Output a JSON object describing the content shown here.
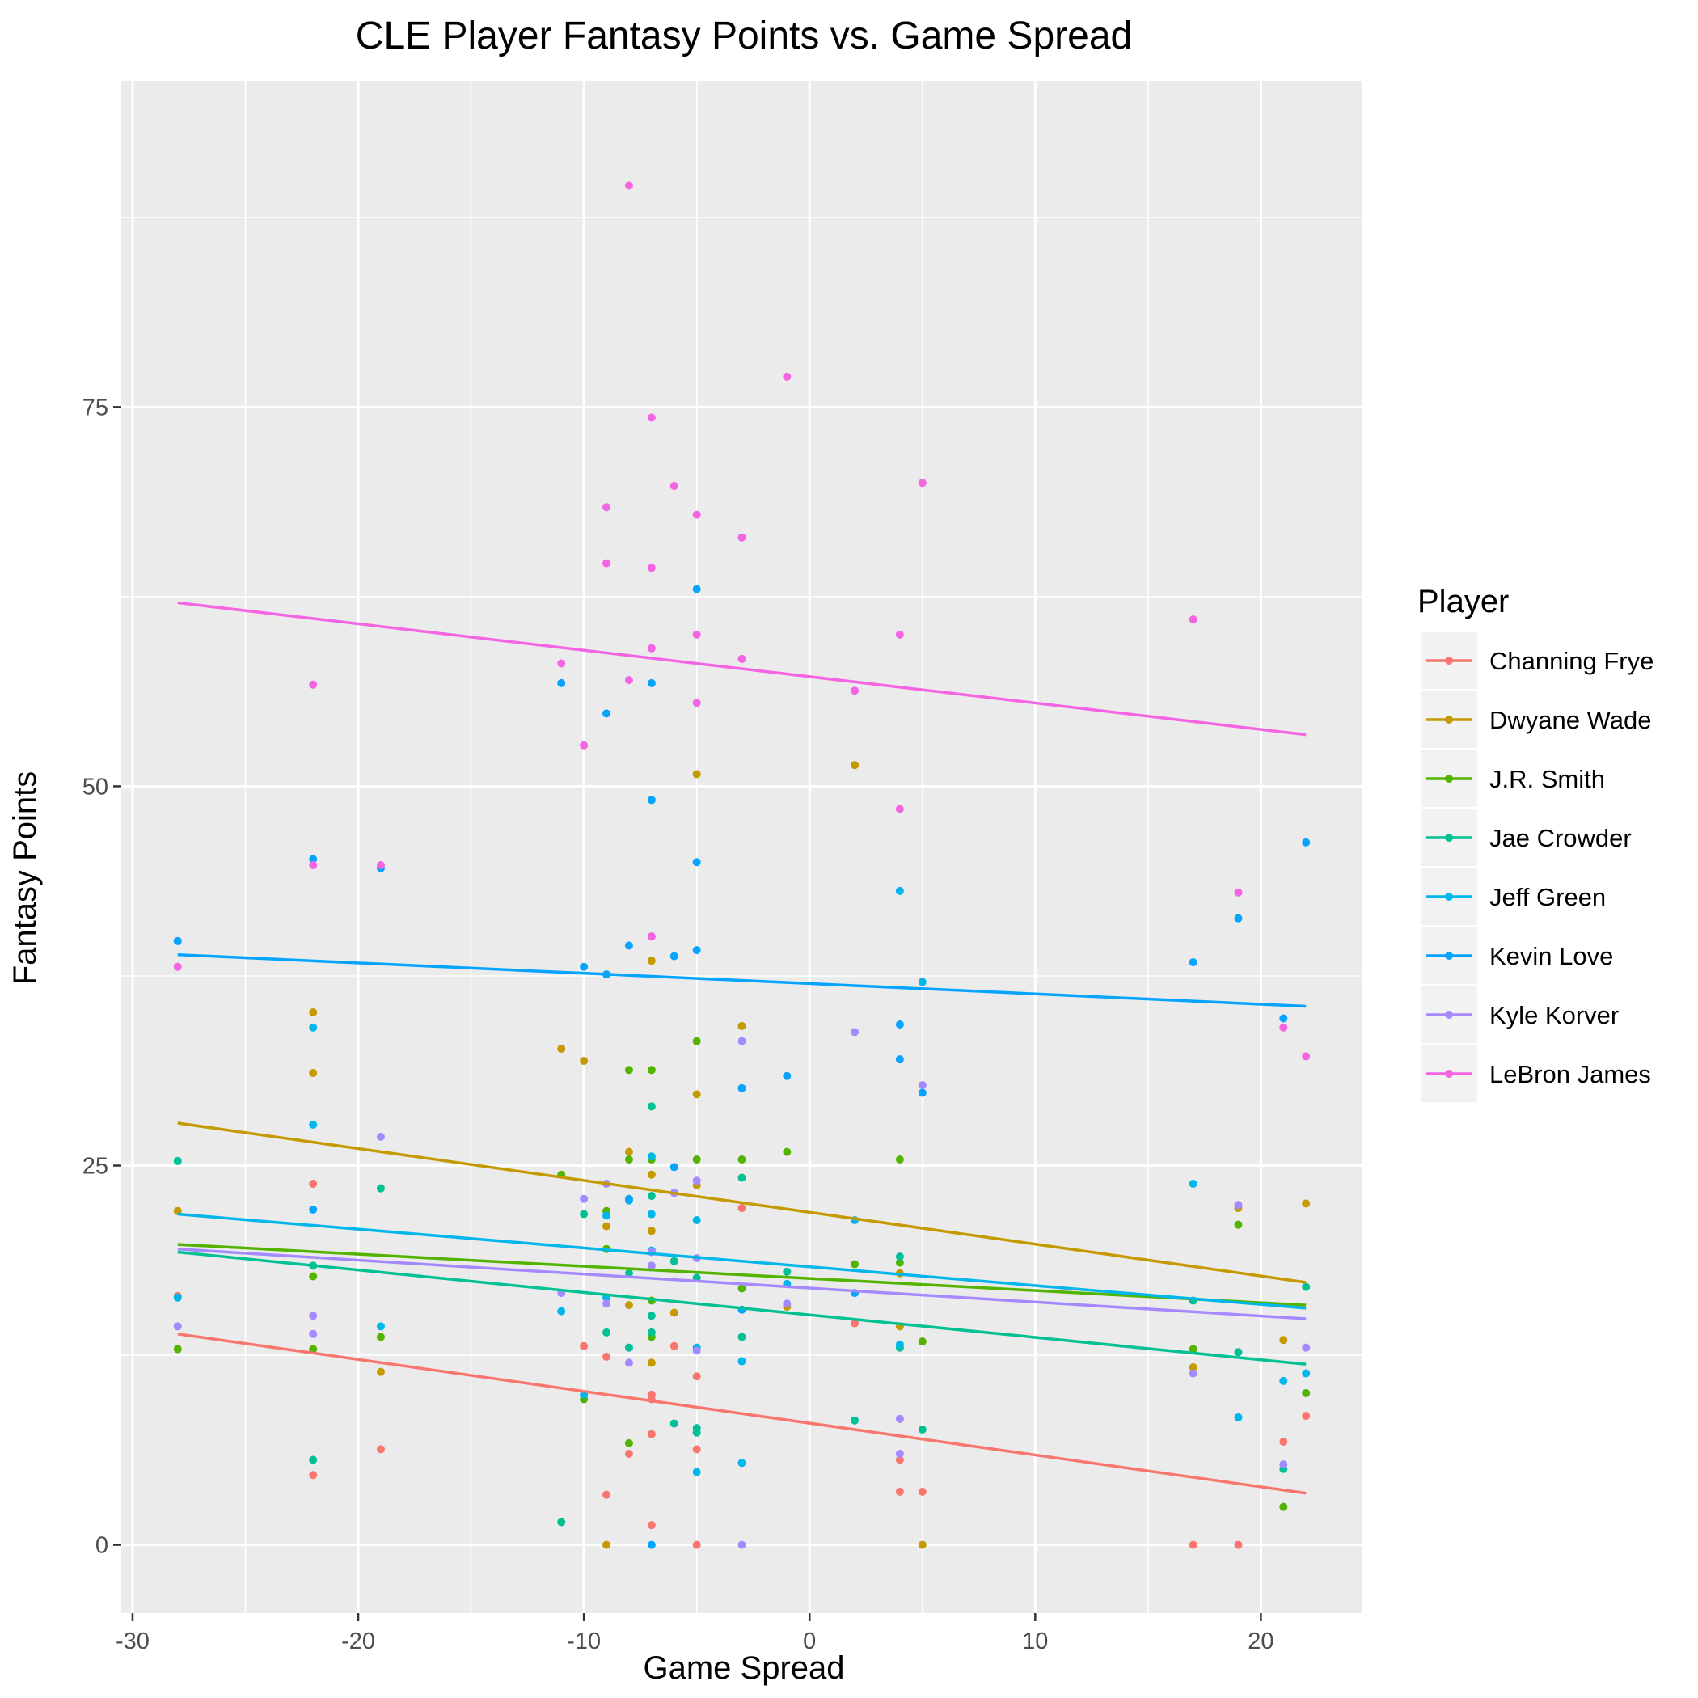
{
  "chart_data": {
    "type": "scatter",
    "title": "CLE Player Fantasy Points vs. Game Spread",
    "xlabel": "Game Spread",
    "ylabel": "Fantasy Points",
    "xlim": [
      -30.5,
      24.5
    ],
    "ylim": [
      -4.5,
      96.5
    ],
    "x_ticks": [
      -30,
      -20,
      -10,
      0,
      10,
      20
    ],
    "y_ticks": [
      0,
      25,
      50,
      75
    ],
    "x_tick_labels": [
      "-30",
      "-20",
      "-10",
      "0",
      "10",
      "20"
    ],
    "y_tick_labels": [
      "0",
      "25",
      "50",
      "75"
    ],
    "grid": true,
    "legend_title": "Player",
    "legend_position": "right",
    "series": [
      {
        "name": "Channing Frye",
        "color": "#F8766D",
        "trend": [
          [
            -28,
            13.9
          ],
          [
            22,
            3.4
          ]
        ],
        "points": [
          [
            -28,
            16.4
          ],
          [
            -22,
            23.8
          ],
          [
            -22,
            4.6
          ],
          [
            -19,
            6.3
          ],
          [
            -10,
            13.1
          ],
          [
            -9,
            12.4
          ],
          [
            -9,
            3.3
          ],
          [
            -8,
            6
          ],
          [
            -7,
            9.9
          ],
          [
            -7,
            9.6
          ],
          [
            -7,
            7.3
          ],
          [
            -7,
            1.3
          ],
          [
            -6,
            13.1
          ],
          [
            -5,
            11.1
          ],
          [
            -5,
            6.3
          ],
          [
            -5,
            0
          ],
          [
            -3,
            22.2
          ],
          [
            2,
            14.6
          ],
          [
            4,
            5.6
          ],
          [
            4,
            3.5
          ],
          [
            5,
            3.5
          ],
          [
            17,
            0
          ],
          [
            19,
            0
          ],
          [
            21,
            6.8
          ],
          [
            22,
            8.5
          ]
        ]
      },
      {
        "name": "Dwyane Wade",
        "color": "#C49A00",
        "trend": [
          [
            -28,
            27.8
          ],
          [
            22,
            17.3
          ]
        ],
        "points": [
          [
            -28,
            22
          ],
          [
            -22,
            35.1
          ],
          [
            -22,
            31.1
          ],
          [
            -19,
            11.4
          ],
          [
            -11,
            32.7
          ],
          [
            -10,
            31.9
          ],
          [
            -9,
            21
          ],
          [
            -9,
            0
          ],
          [
            -8,
            25.9
          ],
          [
            -8,
            15.8
          ],
          [
            -7,
            38.5
          ],
          [
            -7,
            24.4
          ],
          [
            -7,
            20.7
          ],
          [
            -7,
            12
          ],
          [
            -6,
            15.3
          ],
          [
            -5,
            50.8
          ],
          [
            -5,
            29.7
          ],
          [
            -5,
            23.7
          ],
          [
            -3,
            34.2
          ],
          [
            -1,
            15.7
          ],
          [
            2,
            51.4
          ],
          [
            4,
            17.9
          ],
          [
            4,
            14.4
          ],
          [
            5,
            0
          ],
          [
            17,
            11.7
          ],
          [
            19,
            22.2
          ],
          [
            21,
            13.5
          ],
          [
            22,
            22.5
          ]
        ]
      },
      {
        "name": "J.R. Smith",
        "color": "#53B400",
        "trend": [
          [
            -28,
            19.8
          ],
          [
            22,
            15.8
          ]
        ],
        "points": [
          [
            -28,
            12.9
          ],
          [
            -22,
            17.7
          ],
          [
            -22,
            12.9
          ],
          [
            -19,
            13.7
          ],
          [
            -11,
            24.4
          ],
          [
            -10,
            9.6
          ],
          [
            -9,
            22
          ],
          [
            -9,
            19.5
          ],
          [
            -8,
            31.3
          ],
          [
            -8,
            25.4
          ],
          [
            -8,
            6.7
          ],
          [
            -7,
            31.3
          ],
          [
            -7,
            25.4
          ],
          [
            -7,
            16.1
          ],
          [
            -7,
            13.7
          ],
          [
            -5,
            33.2
          ],
          [
            -5,
            25.4
          ],
          [
            -3,
            25.4
          ],
          [
            -3,
            16.9
          ],
          [
            -1,
            25.9
          ],
          [
            2,
            18.5
          ],
          [
            4,
            25.4
          ],
          [
            4,
            18.6
          ],
          [
            5,
            13.4
          ],
          [
            17,
            12.9
          ],
          [
            19,
            21.1
          ],
          [
            21,
            2.5
          ],
          [
            22,
            10
          ]
        ]
      },
      {
        "name": "Jae Crowder",
        "color": "#00C094",
        "trend": [
          [
            -28,
            19.3
          ],
          [
            22,
            11.9
          ]
        ],
        "points": [
          [
            -28,
            25.3
          ],
          [
            -22,
            18.4
          ],
          [
            -22,
            5.6
          ],
          [
            -19,
            23.5
          ],
          [
            -11,
            1.5
          ],
          [
            -10,
            21.8
          ],
          [
            -9,
            14
          ],
          [
            -8,
            17.9
          ],
          [
            -8,
            13
          ],
          [
            -7,
            28.9
          ],
          [
            -7,
            23
          ],
          [
            -7,
            15.1
          ],
          [
            -7,
            14
          ],
          [
            -6,
            18.7
          ],
          [
            -6,
            8
          ],
          [
            -5,
            17.6
          ],
          [
            -5,
            7.7
          ],
          [
            -5,
            7.4
          ],
          [
            -3,
            24.2
          ],
          [
            -3,
            13.7
          ],
          [
            -1,
            18
          ],
          [
            2,
            8.2
          ],
          [
            4,
            19
          ],
          [
            4,
            13
          ],
          [
            5,
            7.6
          ],
          [
            17,
            16.1
          ],
          [
            19,
            12.7
          ],
          [
            21,
            5
          ],
          [
            22,
            17
          ]
        ]
      },
      {
        "name": "Jeff Green",
        "color": "#00B6EB",
        "trend": [
          [
            -28,
            21.8
          ],
          [
            22,
            15.6
          ]
        ],
        "points": [
          [
            -28,
            16.3
          ],
          [
            -22,
            34.1
          ],
          [
            -22,
            27.7
          ],
          [
            -19,
            14.4
          ],
          [
            -11,
            15.4
          ],
          [
            -10,
            9.9
          ],
          [
            -9,
            21.7
          ],
          [
            -9,
            16.3
          ],
          [
            -8,
            22.7
          ],
          [
            -7,
            25.6
          ],
          [
            -7,
            21.8
          ],
          [
            -7,
            19.4
          ],
          [
            -5,
            21.4
          ],
          [
            -5,
            13
          ],
          [
            -5,
            4.8
          ],
          [
            -3,
            12.1
          ],
          [
            -3,
            5.4
          ],
          [
            -1,
            17.2
          ],
          [
            2,
            21.4
          ],
          [
            4,
            43.1
          ],
          [
            4,
            13.2
          ],
          [
            5,
            37.1
          ],
          [
            17,
            23.8
          ],
          [
            19,
            8.4
          ],
          [
            21,
            10.8
          ],
          [
            22,
            11.3
          ]
        ]
      },
      {
        "name": "Kevin Love",
        "color": "#06A4FF",
        "trend": [
          [
            -28,
            38.9
          ],
          [
            22,
            35.5
          ]
        ],
        "points": [
          [
            -28,
            39.8
          ],
          [
            -22,
            45.2
          ],
          [
            -22,
            22.1
          ],
          [
            -19,
            44.6
          ],
          [
            -11,
            56.8
          ],
          [
            -10,
            38.1
          ],
          [
            -9,
            54.8
          ],
          [
            -9,
            37.6
          ],
          [
            -8,
            39.5
          ],
          [
            -8,
            22.8
          ],
          [
            -7,
            56.8
          ],
          [
            -7,
            49.1
          ],
          [
            -7,
            40.1
          ],
          [
            -7,
            0
          ],
          [
            -6,
            38.8
          ],
          [
            -6,
            24.9
          ],
          [
            -5,
            63
          ],
          [
            -5,
            45
          ],
          [
            -5,
            39.2
          ],
          [
            -3,
            30.1
          ],
          [
            -3,
            15.5
          ],
          [
            -1,
            30.9
          ],
          [
            2,
            16.6
          ],
          [
            4,
            34.3
          ],
          [
            4,
            32
          ],
          [
            5,
            29.8
          ],
          [
            17,
            38.4
          ],
          [
            19,
            41.3
          ],
          [
            21,
            34.7
          ],
          [
            22,
            46.3
          ]
        ]
      },
      {
        "name": "Kyle Korver",
        "color": "#A58AFF",
        "trend": [
          [
            -28,
            19.5
          ],
          [
            22,
            14.9
          ]
        ],
        "points": [
          [
            -28,
            14.4
          ],
          [
            -22,
            15.1
          ],
          [
            -22,
            13.9
          ],
          [
            -19,
            26.9
          ],
          [
            -11,
            16.6
          ],
          [
            -10,
            22.8
          ],
          [
            -9,
            23.8
          ],
          [
            -9,
            15.9
          ],
          [
            -8,
            12
          ],
          [
            -7,
            19.3
          ],
          [
            -7,
            18.4
          ],
          [
            -6,
            23.2
          ],
          [
            -5,
            24
          ],
          [
            -5,
            18.9
          ],
          [
            -5,
            12.8
          ],
          [
            -3,
            33.2
          ],
          [
            -3,
            0
          ],
          [
            -1,
            15.9
          ],
          [
            2,
            33.8
          ],
          [
            4,
            8.3
          ],
          [
            4,
            6
          ],
          [
            5,
            30.3
          ],
          [
            17,
            11.3
          ],
          [
            19,
            22.4
          ],
          [
            21,
            5.3
          ],
          [
            22,
            13
          ]
        ]
      },
      {
        "name": "LeBron James",
        "color": "#F564E3",
        "trend": [
          [
            -28,
            62.1
          ],
          [
            22,
            53.4
          ]
        ],
        "points": [
          [
            -28,
            38.1
          ],
          [
            -22,
            56.7
          ],
          [
            -22,
            44.8
          ],
          [
            -19,
            44.8
          ],
          [
            -11,
            58.1
          ],
          [
            -10,
            52.7
          ],
          [
            -9,
            68.4
          ],
          [
            -9,
            64.7
          ],
          [
            -8,
            89.6
          ],
          [
            -8,
            57
          ],
          [
            -7,
            74.3
          ],
          [
            -7,
            64.4
          ],
          [
            -7,
            59.1
          ],
          [
            -7,
            40.1
          ],
          [
            -6,
            69.8
          ],
          [
            -5,
            67.9
          ],
          [
            -5,
            60
          ],
          [
            -5,
            55.5
          ],
          [
            -3,
            66.4
          ],
          [
            -3,
            58.4
          ],
          [
            -1,
            77
          ],
          [
            2,
            56.3
          ],
          [
            4,
            60
          ],
          [
            4,
            48.5
          ],
          [
            5,
            70
          ],
          [
            17,
            61
          ],
          [
            19,
            43
          ],
          [
            21,
            34.1
          ],
          [
            22,
            32.2
          ]
        ]
      }
    ]
  }
}
